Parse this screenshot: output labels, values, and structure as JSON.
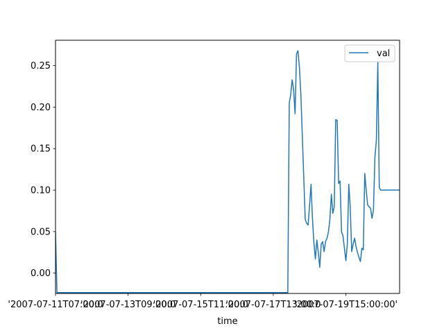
{
  "chart_data": {
    "type": "line",
    "title": "",
    "xlabel": "time",
    "ylabel": "",
    "ylim": [
      -0.0245,
      0.2806
    ],
    "y_ticks": [
      0.0,
      0.05,
      0.1,
      0.15,
      0.2,
      0.25
    ],
    "y_tick_labels": [
      "0.00",
      "0.05",
      "0.10",
      "0.15",
      "0.20",
      "0.25"
    ],
    "x_tick_labels": [
      "'2007-07-11T07:00:0",
      "'2007-07-13T09:00:0",
      "'2007-07-15T11:00:0",
      "'2007-07-17T13:00:0",
      "'2007-07-19T15:00:00'"
    ],
    "x_tick_positions": [
      0,
      50,
      100,
      150,
      200
    ],
    "xlim": [
      0,
      237
    ],
    "legend": {
      "position": "top-right",
      "entries": [
        "val"
      ]
    },
    "grid": false,
    "series": [
      {
        "name": "val",
        "color": "#1f77b4",
        "x": [
          0,
          1,
          20,
          40,
          60,
          80,
          100,
          120,
          140,
          160,
          161,
          162,
          163,
          164,
          165,
          166,
          167,
          168,
          169,
          170,
          171,
          172,
          173,
          174,
          175,
          176,
          177,
          178,
          179,
          180,
          181,
          182,
          183,
          184,
          185,
          186,
          187,
          188,
          189,
          190,
          191,
          192,
          193,
          194,
          195,
          196,
          197,
          198,
          199,
          200,
          201,
          202,
          203,
          204,
          205,
          206,
          207,
          208,
          209,
          210,
          211,
          212,
          213,
          214,
          215,
          216,
          217,
          218,
          219,
          220,
          221,
          222,
          223,
          224,
          225,
          226,
          227,
          228,
          229,
          230,
          231,
          232,
          233,
          234,
          235,
          236,
          237
        ],
        "y": [
          0.05,
          -0.0235,
          -0.0235,
          -0.0235,
          -0.0235,
          -0.0235,
          -0.0235,
          -0.0235,
          -0.0235,
          -0.0235,
          0.205,
          0.215,
          0.233,
          0.221,
          0.192,
          0.264,
          0.268,
          0.248,
          0.215,
          0.165,
          0.115,
          0.065,
          0.06,
          0.058,
          0.082,
          0.107,
          0.065,
          0.036,
          0.017,
          0.04,
          0.025,
          0.007,
          0.035,
          0.038,
          0.026,
          0.038,
          0.042,
          0.05,
          0.065,
          0.095,
          0.072,
          0.08,
          0.185,
          0.184,
          0.108,
          0.111,
          0.05,
          0.045,
          0.03,
          0.015,
          0.035,
          0.107,
          0.08,
          0.026,
          0.035,
          0.042,
          0.032,
          0.025,
          0.019,
          0.014,
          0.03,
          0.028,
          0.12,
          0.1,
          0.082,
          0.08,
          0.078,
          0.066,
          0.076,
          0.14,
          0.16,
          0.254,
          0.103,
          0.1,
          0.1,
          0.1,
          0.1,
          0.1,
          0.1,
          0.1,
          0.1,
          0.1,
          0.1,
          0.1,
          0.1,
          0.1,
          0.1
        ]
      }
    ]
  }
}
